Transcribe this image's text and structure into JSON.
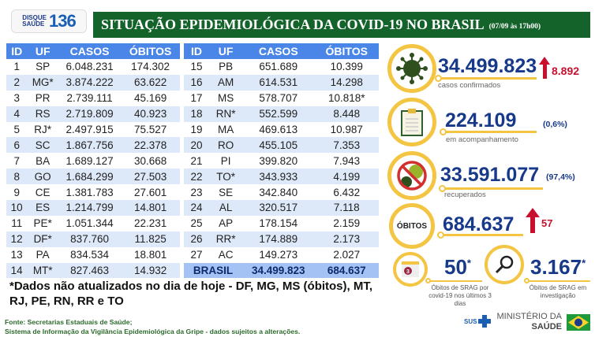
{
  "header": {
    "logo_line1": "DISQUE",
    "logo_line2": "SAÚDE",
    "logo_number": "136",
    "title": "SITUAÇÃO EPIDEMIOLÓGICA DA COVID-19 NO BRASIL",
    "date": "(07/09 às 17h00)"
  },
  "table": {
    "columns": [
      "ID",
      "UF",
      "CASOS",
      "ÓBITOS"
    ],
    "left": [
      [
        "1",
        "SP",
        "6.048.231",
        "174.302"
      ],
      [
        "2",
        "MG*",
        "3.874.222",
        "63.622"
      ],
      [
        "3",
        "PR",
        "2.739.111",
        "45.169"
      ],
      [
        "4",
        "RS",
        "2.719.809",
        "40.923"
      ],
      [
        "5",
        "RJ*",
        "2.497.915",
        "75.527"
      ],
      [
        "6",
        "SC",
        "1.867.756",
        "22.378"
      ],
      [
        "7",
        "BA",
        "1.689.127",
        "30.668"
      ],
      [
        "8",
        "GO",
        "1.684.299",
        "27.503"
      ],
      [
        "9",
        "CE",
        "1.381.783",
        "27.601"
      ],
      [
        "10",
        "ES",
        "1.214.799",
        "14.801"
      ],
      [
        "11",
        "PE*",
        "1.051.344",
        "22.231"
      ],
      [
        "12",
        "DF*",
        "837.760",
        "11.825"
      ],
      [
        "13",
        "PA",
        "834.534",
        "18.801"
      ],
      [
        "14",
        "MT*",
        "827.463",
        "14.932"
      ]
    ],
    "right": [
      [
        "15",
        "PB",
        "651.689",
        "10.399"
      ],
      [
        "16",
        "AM",
        "614.531",
        "14.298"
      ],
      [
        "17",
        "MS",
        "578.707",
        "10.818*"
      ],
      [
        "18",
        "RN*",
        "552.599",
        "8.448"
      ],
      [
        "19",
        "MA",
        "469.613",
        "10.987"
      ],
      [
        "20",
        "RO",
        "455.105",
        "7.353"
      ],
      [
        "21",
        "PI",
        "399.820",
        "7.943"
      ],
      [
        "22",
        "TO*",
        "343.933",
        "4.199"
      ],
      [
        "23",
        "SE",
        "342.840",
        "6.432"
      ],
      [
        "24",
        "AL",
        "320.517",
        "7.118"
      ],
      [
        "25",
        "AP",
        "178.154",
        "2.159"
      ],
      [
        "26",
        "RR*",
        "174.889",
        "2.173"
      ],
      [
        "27",
        "AC",
        "149.273",
        "2.027"
      ]
    ],
    "total": {
      "label": "BRASIL",
      "casos": "34.499.823",
      "obitos": "684.637"
    }
  },
  "note": "*Dados não atualizados no dia de hoje - DF, MG, MS (óbitos), MT, RJ, PE, RN, RR e TO",
  "source": {
    "line1": "Fonte: Secretarias Estaduais de Saúde;",
    "line2": "Sistema de Informação da Vigilância Epidemiológica da Gripe - dados sujeitos a alterações."
  },
  "stats": {
    "confirmed": {
      "value": "34.499.823",
      "delta": "8.892",
      "label": "casos confirmados",
      "icon": "virus-icon"
    },
    "monitoring": {
      "value": "224.109",
      "pct": "(0,6%)",
      "label": "em acompanhamento",
      "icon": "clipboard-icon"
    },
    "recovered": {
      "value": "33.591.077",
      "pct": "(97,4%)",
      "label": "recuperados",
      "icon": "no-virus-icon"
    },
    "deaths": {
      "badge": "ÓBITOS",
      "value": "684.637",
      "delta": "57"
    },
    "srag3": {
      "value": "50",
      "star": "*",
      "cal": "3",
      "label": "Óbitos de SRAG por covid-19 nos últimos 3 dias",
      "icon": "calendar-icon"
    },
    "srag_inv": {
      "value": "3.167",
      "star": "*",
      "label": "Óbitos de SRAG em investigação",
      "icon": "magnifier-icon"
    }
  },
  "footer": {
    "sus": "SUS",
    "ministry1": "MINISTÉRIO DA",
    "ministry2": "SAÚDE"
  },
  "colors": {
    "green": "#14632b",
    "blue_header": "#4a86e8",
    "yellow": "#f4c542",
    "navy": "#17398a",
    "red": "#c8102e"
  }
}
